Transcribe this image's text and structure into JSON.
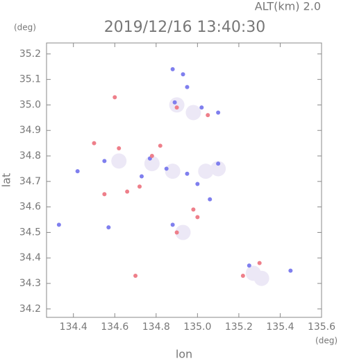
{
  "chart_data": {
    "type": "scatter",
    "title": "2019/12/16 13:40:30",
    "subtitle": "ALT(km) 2.0",
    "y_unit": "(deg)",
    "x_unit": "(deg)",
    "xlabel": "lon",
    "ylabel": "lat",
    "xlim": [
      134.27,
      135.6
    ],
    "ylim": [
      34.167,
      35.243
    ],
    "xticks": [
      134.4,
      134.6,
      134.8,
      {
        "value": 135,
        "label": "135.0"
      },
      135.2,
      135.4,
      135.6
    ],
    "yticks": [
      34.2,
      34.3,
      34.4,
      34.5,
      34.6,
      34.7,
      34.8,
      34.9,
      {
        "value": 35,
        "label": "35.0"
      },
      35.1,
      35.2
    ],
    "series": [
      {
        "color": "#ece8f6",
        "x": [
          134.78,
          134.88,
          134.93,
          135.27,
          135.31,
          135.1,
          134.62,
          134.98,
          134.9,
          135.04
        ],
        "values": [
          34.77,
          34.74,
          34.5,
          34.34,
          34.32,
          34.75,
          34.78,
          34.97,
          35.0,
          34.74
        ]
      },
      {
        "color": "#7f7fee",
        "x": [
          134.88,
          134.93,
          134.95,
          134.89,
          135.02,
          135.1,
          134.77,
          134.85,
          134.55,
          134.42,
          135.0,
          135.06,
          134.88,
          135.25,
          134.57,
          134.33,
          135.1,
          135.45,
          134.73,
          134.95
        ],
        "values": [
          35.14,
          35.12,
          35.07,
          35.01,
          34.99,
          34.97,
          34.79,
          34.75,
          34.78,
          34.74,
          34.69,
          34.63,
          34.53,
          34.37,
          34.52,
          34.53,
          34.77,
          34.35,
          34.72,
          34.73
        ]
      },
      {
        "color": "#ee7f8a",
        "x": [
          134.6,
          134.9,
          135.05,
          134.82,
          134.78,
          134.55,
          134.72,
          134.98,
          135.0,
          135.22,
          135.3,
          134.7,
          134.5,
          134.9,
          134.66,
          134.62
        ],
        "values": [
          35.03,
          34.99,
          34.96,
          34.84,
          34.8,
          34.65,
          34.68,
          34.59,
          34.56,
          34.33,
          34.38,
          34.33,
          34.85,
          34.5,
          34.66,
          34.83
        ]
      }
    ]
  }
}
